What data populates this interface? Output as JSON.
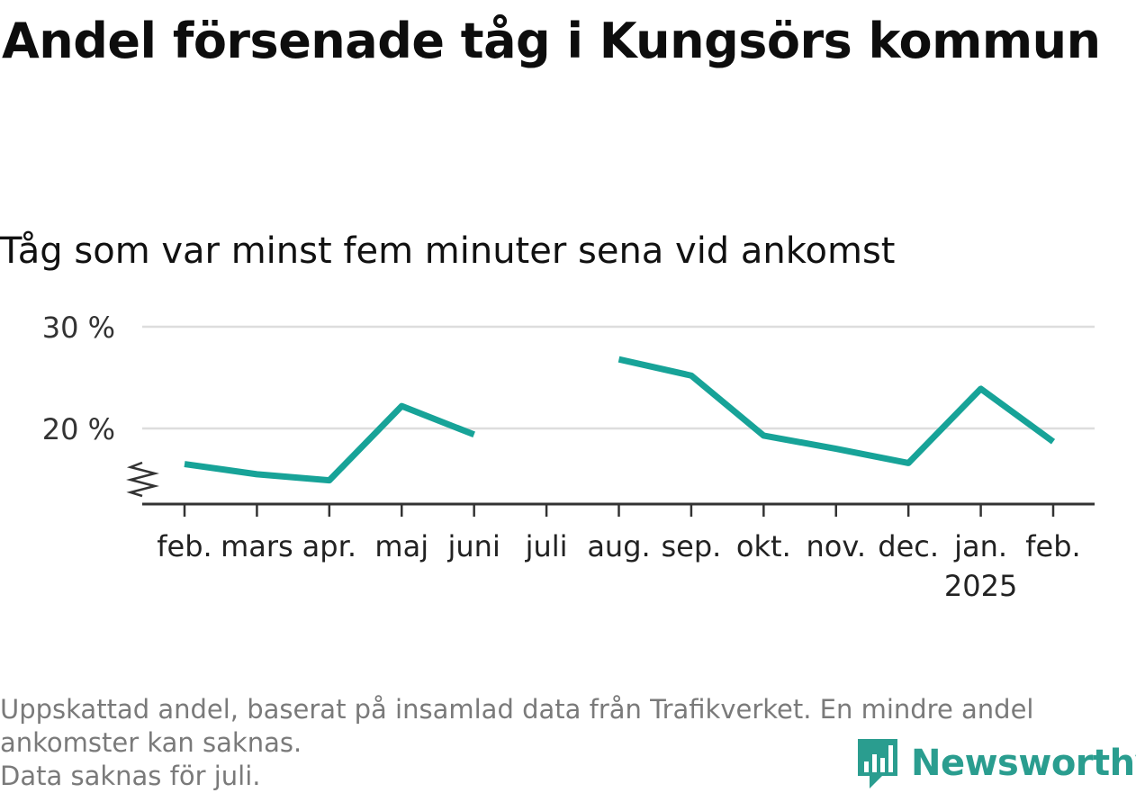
{
  "title": "Andel försenade tåg i Kungsörs kommun",
  "subtitle": "Tåg som var minst fem minuter sena vid ankomst",
  "notes": [
    "Uppskattad andel, baserat på insamlad data från Trafikverket. En mindre andel",
    "ankomster kan saknas.",
    "Data saknas för juli."
  ],
  "brand": {
    "name": "Newsworthy",
    "icon": "newsworthy-logo-icon",
    "color": "#2a9d8f"
  },
  "chart_data": {
    "type": "line",
    "categories": [
      "feb.",
      "mars",
      "apr.",
      "maj",
      "juni",
      "juli",
      "aug.",
      "sep.",
      "okt.",
      "nov.",
      "dec.",
      "jan.",
      "feb."
    ],
    "year_labels": {
      "11": "2025"
    },
    "series": [
      {
        "values": [
          16.5,
          15.5,
          14.9,
          22.2,
          19.4,
          null,
          26.8,
          25.2,
          19.3,
          18.0,
          16.6,
          23.9,
          18.7
        ],
        "color": "#17a398"
      }
    ],
    "y_ticks": [
      {
        "value": 20,
        "label": "20 %"
      },
      {
        "value": 30,
        "label": "30 %"
      }
    ],
    "ylim": [
      13,
      30
    ],
    "axis_break": true,
    "grid": true,
    "xlabel": "",
    "ylabel": ""
  }
}
